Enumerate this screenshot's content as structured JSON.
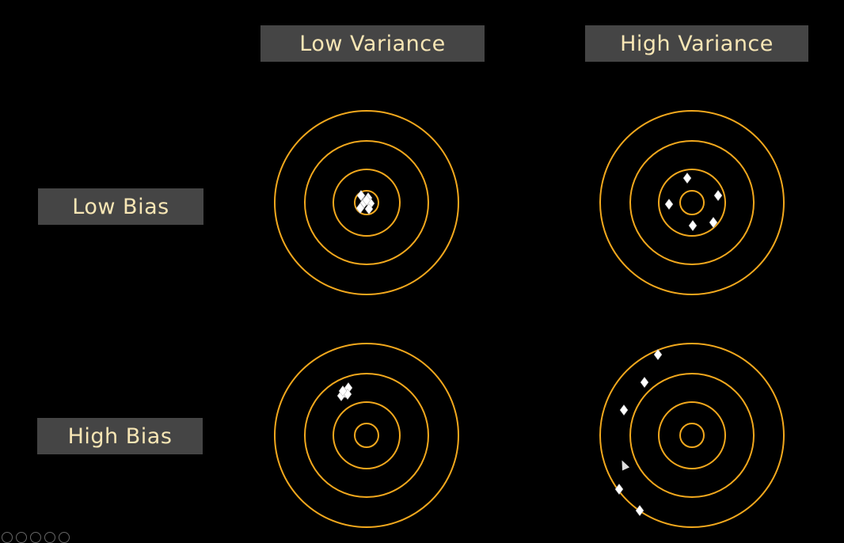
{
  "columns": {
    "low_variance": "Low Variance",
    "high_variance": "High Variance"
  },
  "rows": {
    "low_bias": "Low Bias",
    "high_bias": "High Bias"
  },
  "colors": {
    "background": "#000000",
    "ring": "#f2a81d",
    "label_bg": "#454545",
    "label_text": "#f7e6b5",
    "marker": "#ffffff"
  },
  "icons": {
    "marker": "diamond-marker-icon",
    "cursor": "mouse-pointer-icon"
  },
  "targets": [
    {
      "name": "target-low-bias-low-variance",
      "hits": [
        [
          -7,
          -9
        ],
        [
          2,
          -6
        ],
        [
          -3,
          0
        ],
        [
          5,
          1
        ],
        [
          -8,
          7
        ],
        [
          3,
          8
        ],
        [
          0,
          -3
        ]
      ]
    },
    {
      "name": "target-low-bias-high-variance",
      "hits": [
        [
          -6,
          -31
        ],
        [
          -29,
          2
        ],
        [
          33,
          -9
        ],
        [
          1,
          29
        ],
        [
          27,
          25
        ]
      ]
    },
    {
      "name": "target-high-bias-low-variance",
      "hits": [
        [
          -27,
          -54
        ],
        [
          -23,
          -60
        ],
        [
          -32,
          -50
        ],
        [
          -24,
          -52
        ],
        [
          -30,
          -56
        ]
      ]
    },
    {
      "name": "target-high-bias-high-variance",
      "hits": [
        [
          -43,
          -102
        ],
        [
          -60,
          -67
        ],
        [
          -86,
          -32
        ],
        [
          -92,
          68
        ],
        [
          -66,
          95
        ]
      ]
    }
  ]
}
